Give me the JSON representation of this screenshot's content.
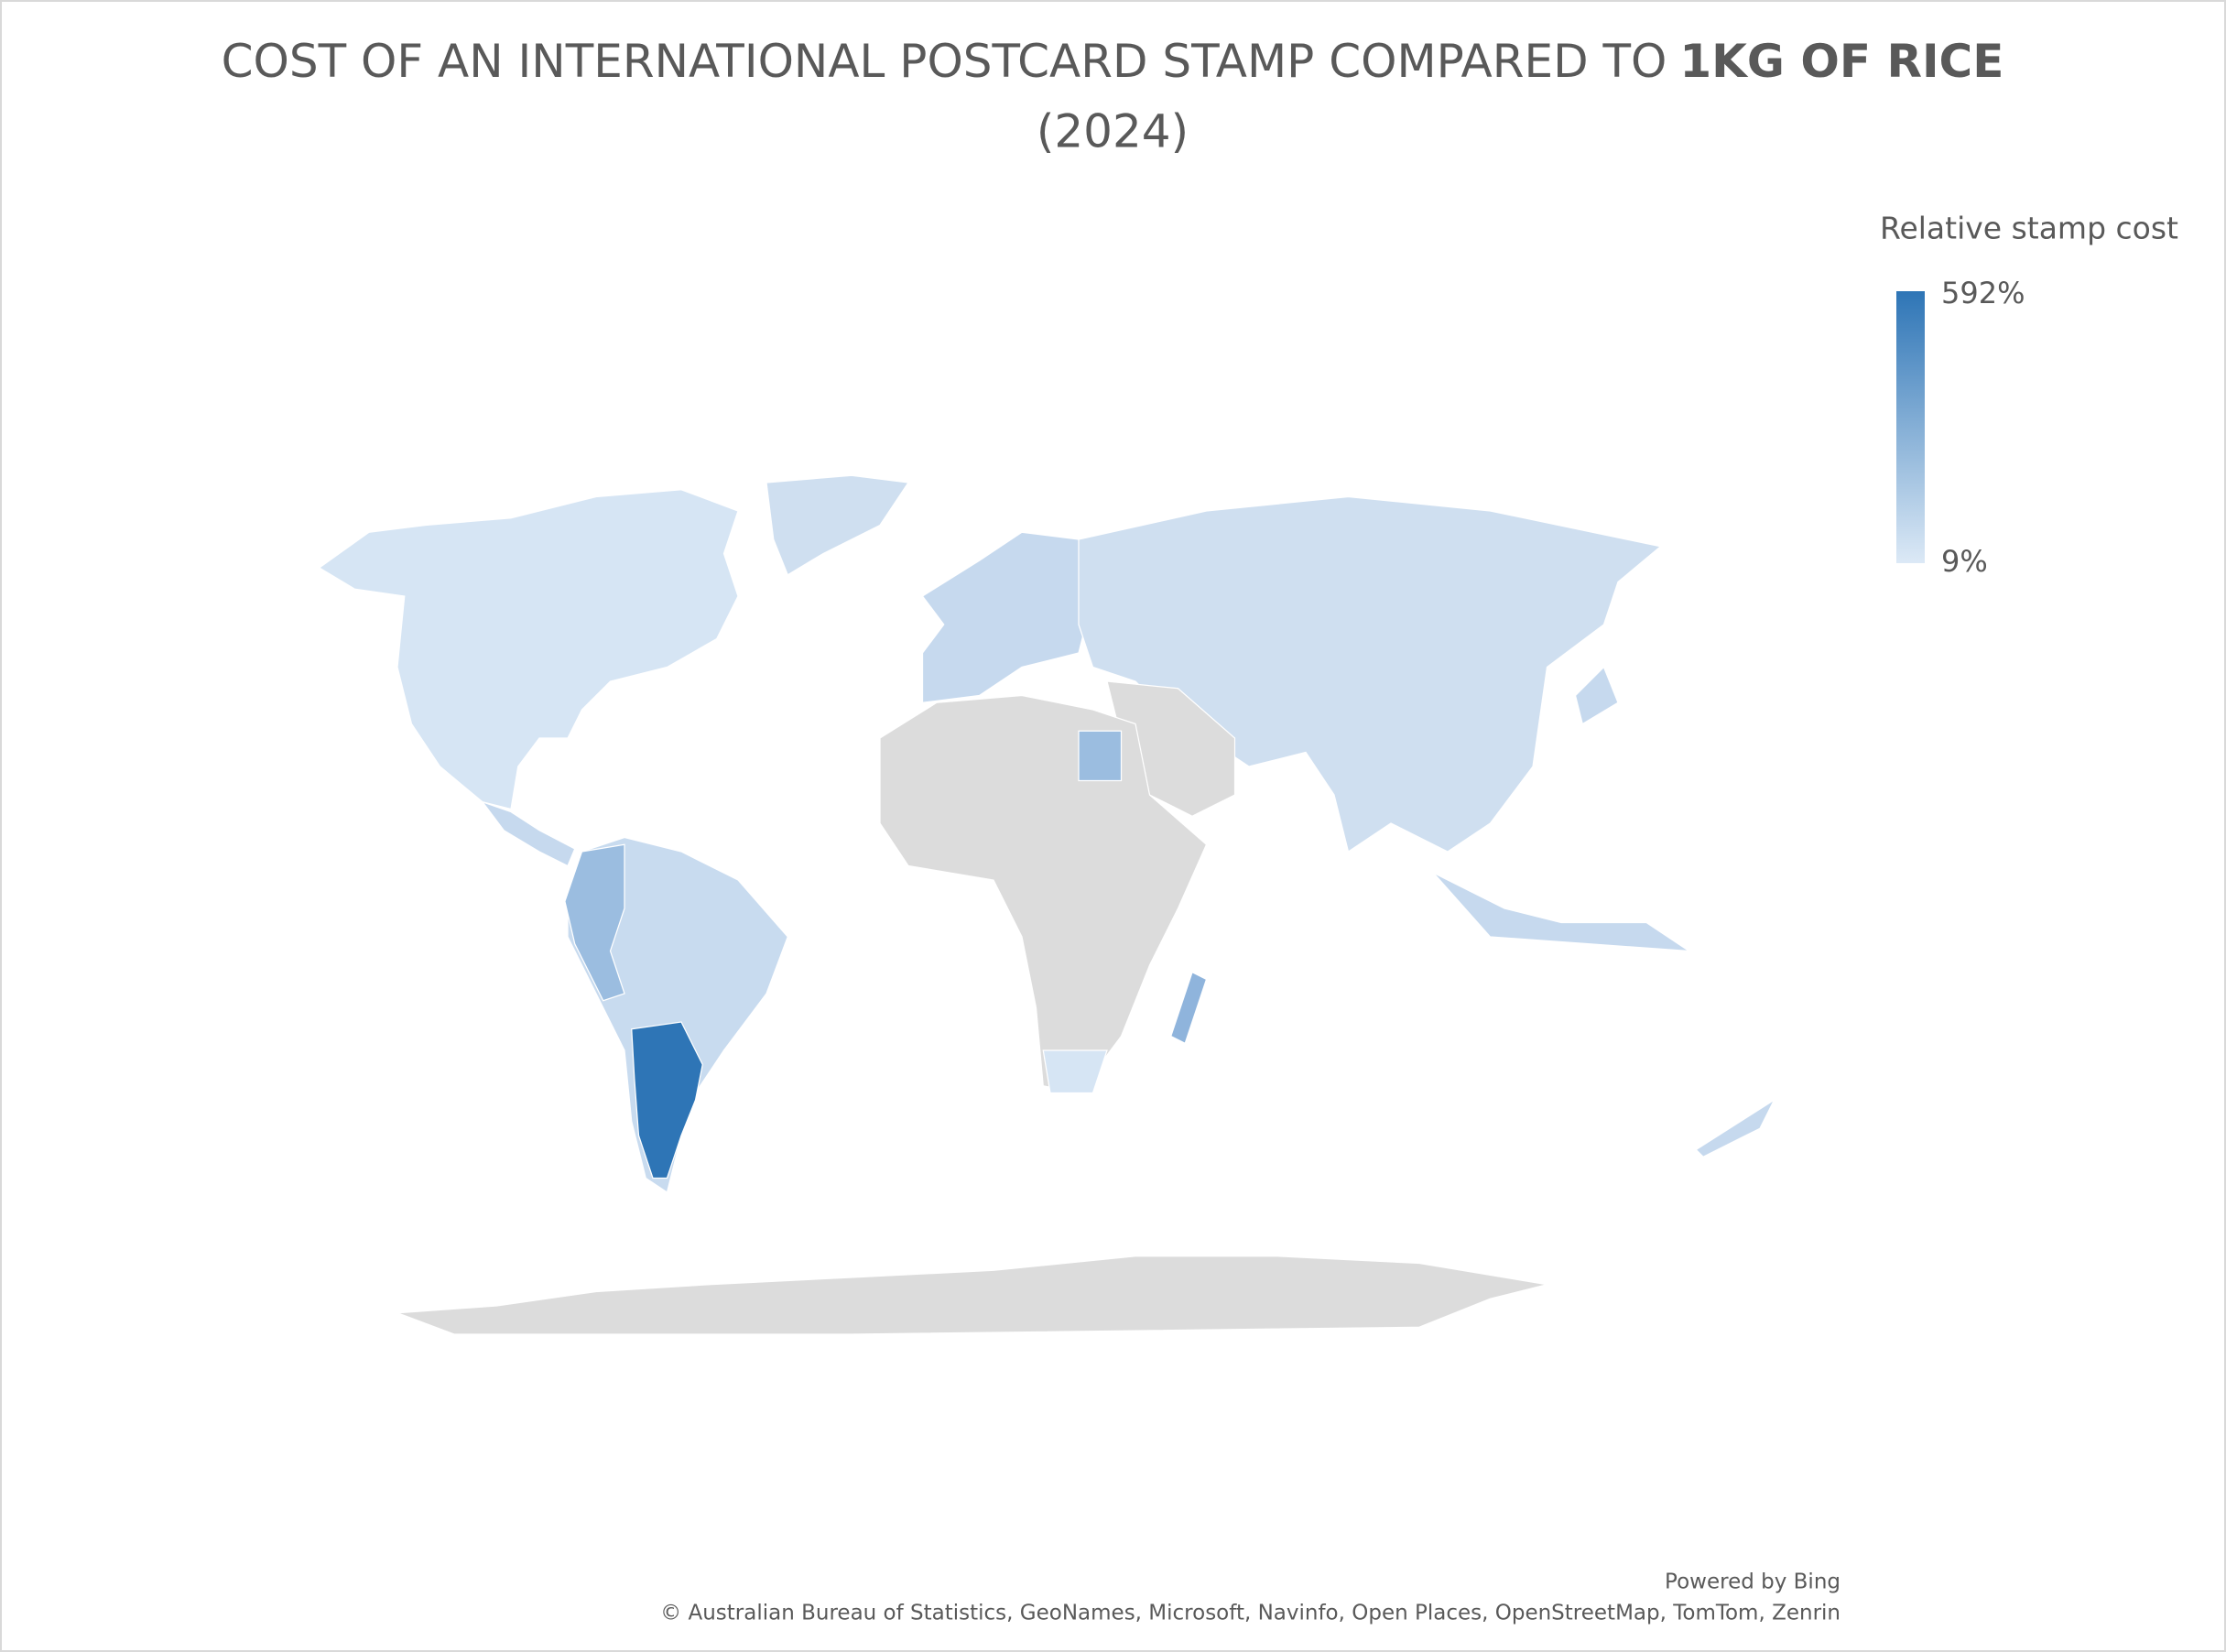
{
  "chart_data": {
    "type": "map",
    "title": {
      "text": "COST OF AN INTERNATIONAL POSTCARD STAMP COMPARED TO",
      "emphasis": "1KG OF RICE",
      "line2": "(2024)"
    },
    "legend": {
      "title": "Relative stamp cost",
      "max": {
        "value": 592,
        "label": "592%"
      },
      "min": {
        "value": 9,
        "label": "9%"
      },
      "colors": [
        "#dce9f6",
        "#2e75b6"
      ]
    },
    "credits": {
      "powered_by": "Powered by Bing",
      "attribution": "© Australian Bureau of Statistics, GeoNames, Microsoft, Navinfo, Open Places, OpenStreetMap, TomTom, Zenrin"
    }
  }
}
